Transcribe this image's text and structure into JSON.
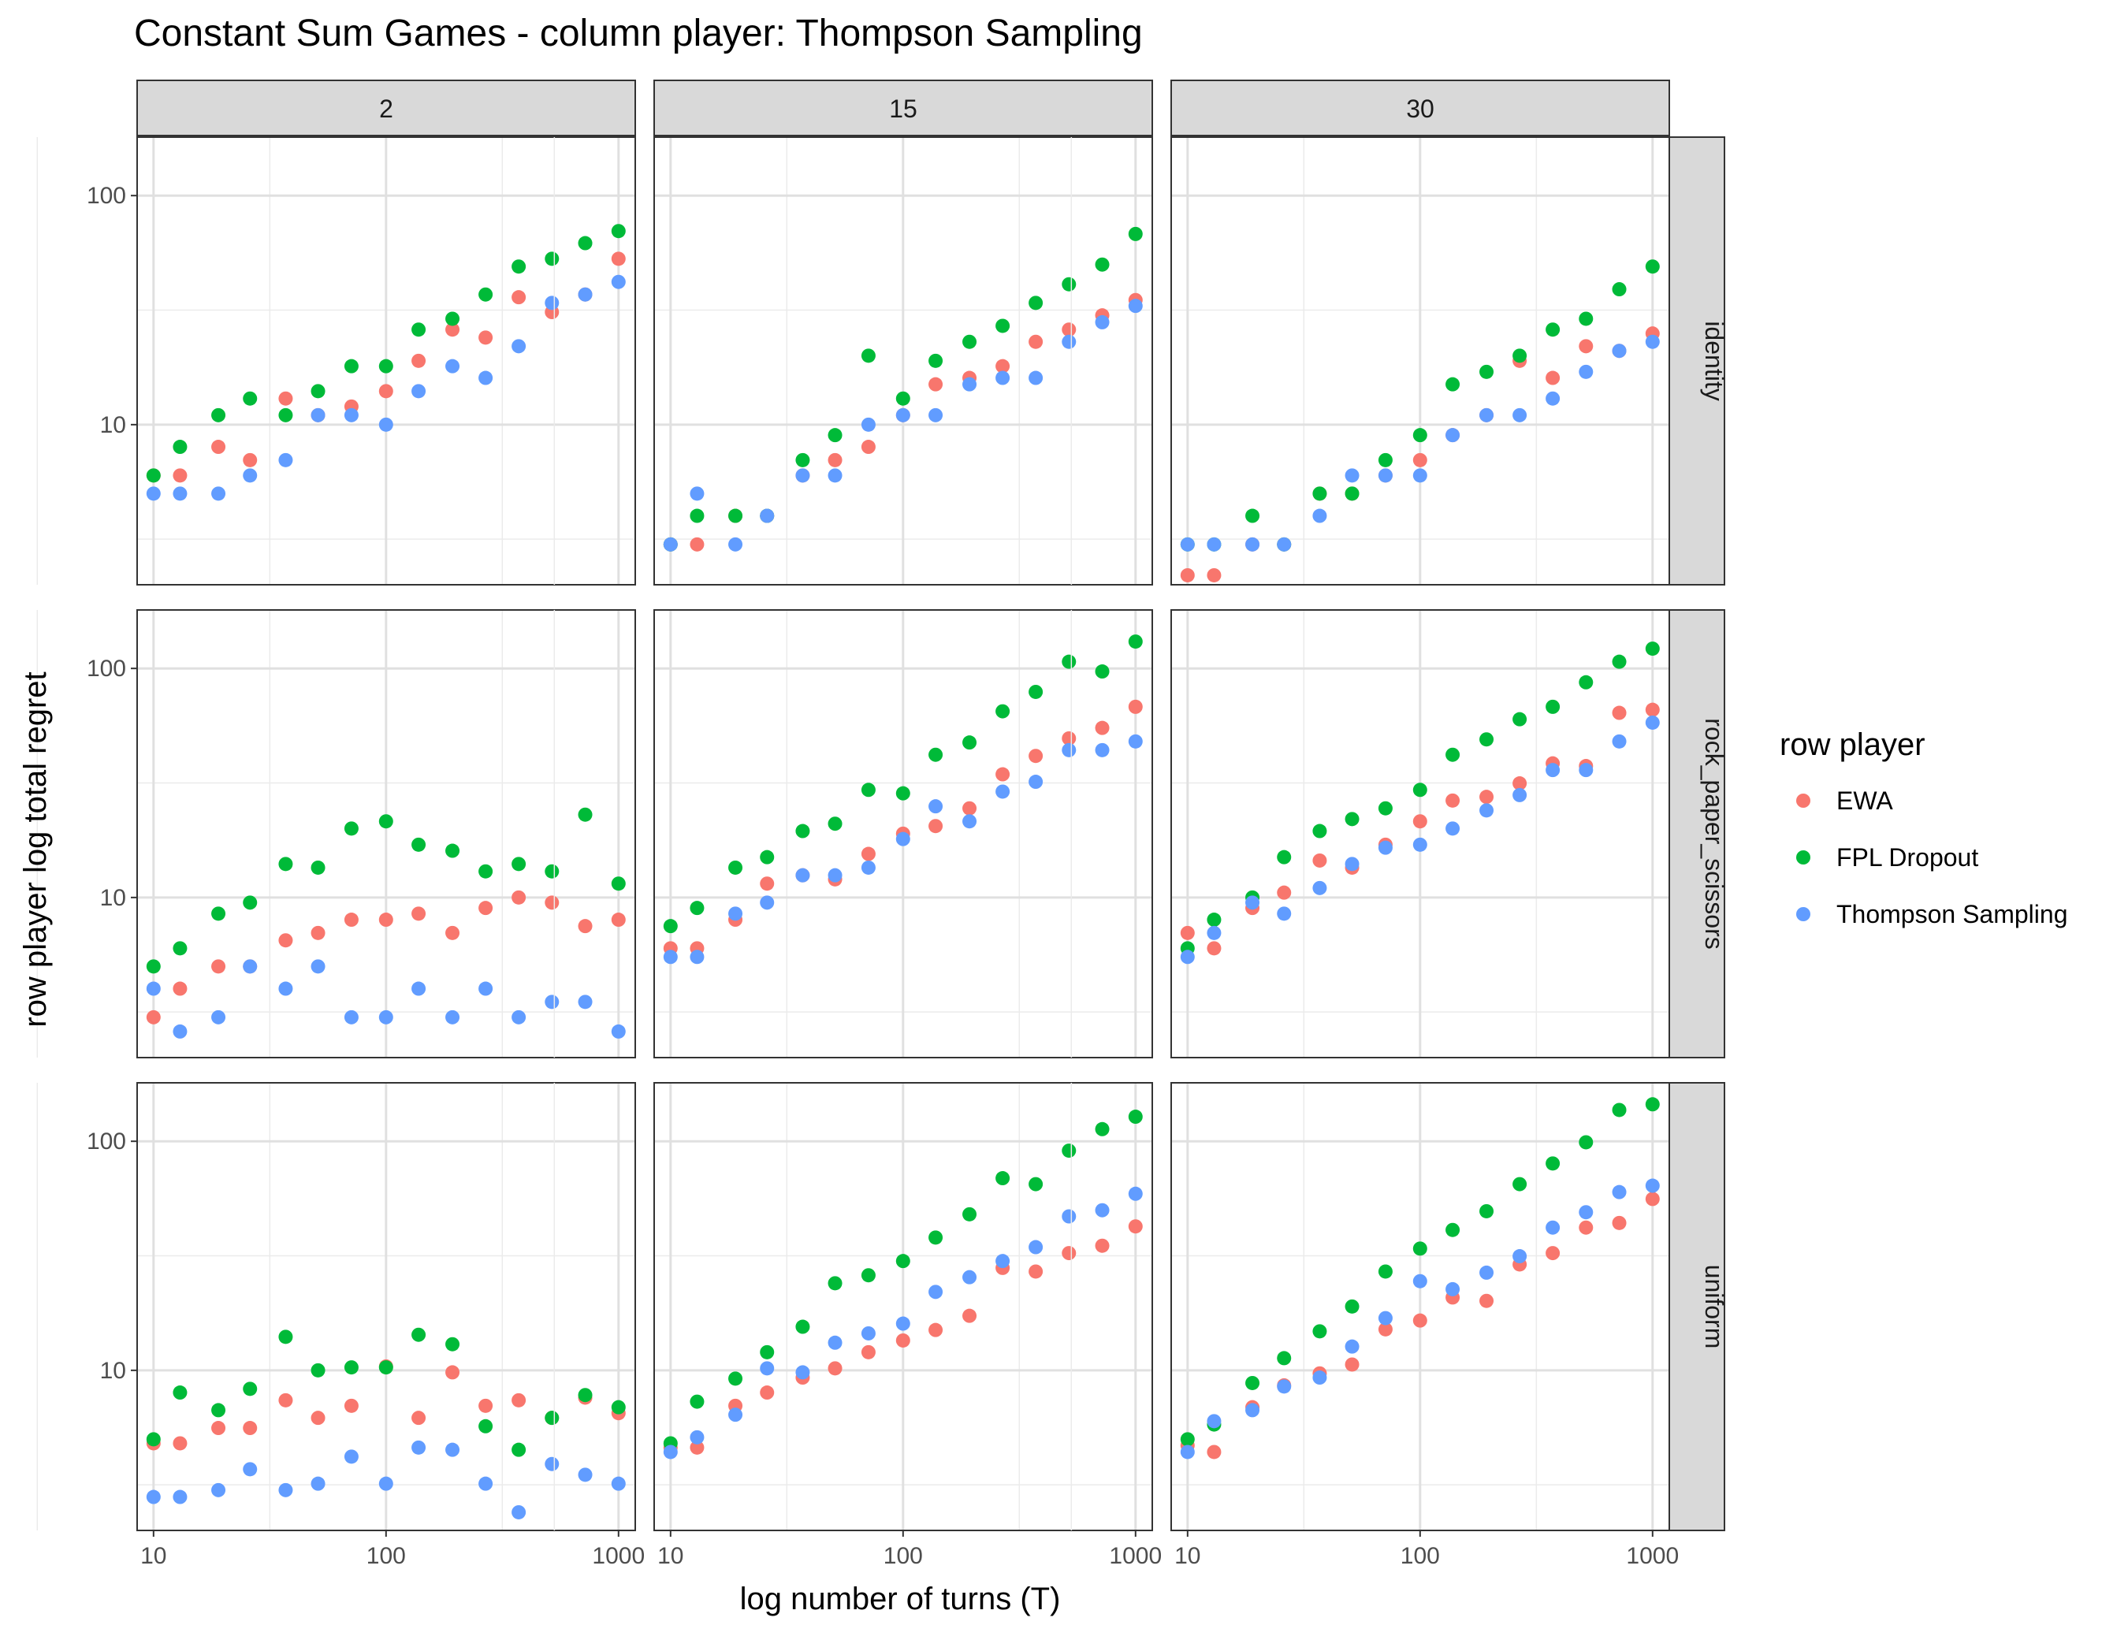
{
  "title": "Constant Sum Games - column player: Thompson Sampling",
  "chart_data": {
    "type": "scatter",
    "facet_layout": "grid",
    "x_scale": "log10",
    "y_scale": "log10",
    "xlabel": "log number of turns (T)",
    "ylabel": "row player log total regret",
    "xlim": [
      8.5,
      1180
    ],
    "ylim": [
      2.0,
      180
    ],
    "x_ticks": [
      10,
      100,
      1000
    ],
    "x_tick_labels": [
      "10",
      "100",
      "1000"
    ],
    "y_ticks": [
      10,
      100
    ],
    "y_tick_labels": [
      "10",
      "100"
    ],
    "grid": true,
    "legend": {
      "title": "row player",
      "position": "right",
      "entries": [
        {
          "name": "EWA",
          "color": "#F8766D"
        },
        {
          "name": "FPL Dropout",
          "color": "#00BA38"
        },
        {
          "name": "Thompson Sampling",
          "color": "#619CFF"
        }
      ]
    },
    "columns": [
      "2",
      "15",
      "30"
    ],
    "rows": [
      "identity",
      "rock_paper_scissors",
      "uniform"
    ],
    "x": [
      10,
      13,
      19,
      26,
      37,
      51,
      71,
      100,
      138,
      193,
      268,
      372,
      517,
      719,
      1000
    ],
    "panels": [
      {
        "col": "2",
        "row": "identity",
        "series": [
          {
            "name": "EWA",
            "values": [
              6,
              6,
              8,
              7,
              13,
              11,
              12,
              14,
              19,
              26,
              24,
              36,
              31,
              37,
              53
            ]
          },
          {
            "name": "FPL Dropout",
            "values": [
              6,
              8,
              11,
              13,
              11,
              14,
              18,
              18,
              26,
              29,
              37,
              49,
              53,
              62,
              70
            ]
          },
          {
            "name": "Thompson Sampling",
            "values": [
              5,
              5,
              5,
              6,
              7,
              11,
              11,
              10,
              14,
              18,
              16,
              22,
              34,
              37,
              42
            ]
          }
        ]
      },
      {
        "col": "15",
        "row": "identity",
        "series": [
          {
            "name": "EWA",
            "values": [
              3,
              3,
              4,
              4,
              6,
              7,
              8,
              11,
              15,
              16,
              18,
              23,
              26,
              30,
              35
            ]
          },
          {
            "name": "FPL Dropout",
            "values": [
              3,
              4,
              4,
              4,
              7,
              9,
              20,
              13,
              19,
              23,
              27,
              34,
              41,
              50,
              68
            ]
          },
          {
            "name": "Thompson Sampling",
            "values": [
              3,
              5,
              3,
              4,
              6,
              6,
              10,
              11,
              11,
              15,
              16,
              16,
              23,
              28,
              33
            ]
          }
        ]
      },
      {
        "col": "30",
        "row": "identity",
        "series": [
          {
            "name": "EWA",
            "values": [
              2.2,
              2.2,
              3,
              3,
              5,
              5,
              6,
              7,
              9,
              11,
              19,
              16,
              22,
              21,
              25
            ]
          },
          {
            "name": "FPL Dropout",
            "values": [
              3,
              3,
              4,
              3,
              5,
              5,
              7,
              9,
              15,
              17,
              20,
              26,
              29,
              39,
              49
            ]
          },
          {
            "name": "Thompson Sampling",
            "values": [
              3,
              3,
              3,
              3,
              4,
              6,
              6,
              6,
              9,
              11,
              11,
              13,
              17,
              21,
              23
            ]
          }
        ]
      },
      {
        "col": "2",
        "row": "rock_paper_scissors",
        "series": [
          {
            "name": "EWA",
            "values": [
              3,
              4,
              5,
              5,
              6.5,
              7,
              8,
              8,
              8.5,
              7,
              9,
              10,
              9.5,
              7.5,
              8
            ]
          },
          {
            "name": "FPL Dropout",
            "values": [
              5,
              6,
              8.5,
              9.5,
              14,
              13.5,
              20,
              21.5,
              17,
              16,
              13,
              14,
              13,
              23,
              11.5
            ]
          },
          {
            "name": "Thompson Sampling",
            "values": [
              4,
              2.6,
              3,
              5,
              4,
              5,
              3,
              3,
              4,
              3,
              4,
              3,
              3.5,
              3.5,
              2.6
            ]
          }
        ]
      },
      {
        "col": "15",
        "row": "rock_paper_scissors",
        "series": [
          {
            "name": "EWA",
            "values": [
              6,
              6,
              8,
              11.5,
              12.5,
              12,
              15.5,
              19,
              20.5,
              24.5,
              34.5,
              41.5,
              49.5,
              55,
              68
            ]
          },
          {
            "name": "FPL Dropout",
            "values": [
              7.5,
              9,
              13.5,
              15,
              19.5,
              21,
              29.5,
              28.5,
              42,
              47.5,
              65,
              79,
              107,
              97,
              131
            ]
          },
          {
            "name": "Thompson Sampling",
            "values": [
              5.5,
              5.5,
              8.5,
              9.5,
              12.5,
              12.5,
              13.5,
              18,
              25,
              21.5,
              29,
              32,
              44,
              44,
              48
            ]
          }
        ]
      },
      {
        "col": "30",
        "row": "rock_paper_scissors",
        "series": [
          {
            "name": "EWA",
            "values": [
              7,
              6,
              9,
              10.5,
              14.5,
              13.5,
              17,
              21.5,
              26.5,
              27.5,
              31.5,
              38.5,
              37.5,
              64,
              66
            ]
          },
          {
            "name": "FPL Dropout",
            "values": [
              6,
              8,
              10,
              15,
              19.5,
              22,
              24.5,
              29.5,
              42,
              49,
              60,
              68,
              87,
              107,
              122
            ]
          },
          {
            "name": "Thompson Sampling",
            "values": [
              5.5,
              7,
              9.5,
              8.5,
              11,
              14,
              16.5,
              17,
              20,
              24,
              28,
              36,
              36,
              48,
              58
            ]
          }
        ]
      },
      {
        "col": "2",
        "row": "uniform",
        "series": [
          {
            "name": "EWA",
            "values": [
              4.8,
              4.8,
              5.6,
              5.6,
              7.4,
              6.2,
              7,
              10.4,
              6.2,
              9.8,
              7,
              7.4,
              6.2,
              7.6,
              6.5
            ]
          },
          {
            "name": "FPL Dropout",
            "values": [
              5,
              8,
              6.7,
              8.3,
              14,
              10,
              10.3,
              10.3,
              14.3,
              13,
              5.7,
              4.5,
              6.2,
              7.8,
              6.9
            ]
          },
          {
            "name": "Thompson Sampling",
            "values": [
              2.8,
              2.8,
              3,
              3.7,
              3,
              3.2,
              4.2,
              3.2,
              4.6,
              4.5,
              3.2,
              2.4,
              3.9,
              3.5,
              3.2
            ]
          }
        ]
      },
      {
        "col": "15",
        "row": "uniform",
        "series": [
          {
            "name": "EWA",
            "values": [
              4.6,
              4.6,
              7,
              8,
              9.3,
              10.2,
              12,
              13.5,
              15,
              17.3,
              28,
              27,
              32.5,
              35,
              42.5
            ]
          },
          {
            "name": "FPL Dropout",
            "values": [
              4.8,
              7.3,
              9.2,
              12,
              15.5,
              24,
              26,
              30,
              38,
              48,
              69,
              65,
              91,
              113,
              128
            ]
          },
          {
            "name": "Thompson Sampling",
            "values": [
              4.4,
              5.1,
              6.4,
              10.2,
              9.8,
              13.2,
              14.5,
              16,
              22,
              25.5,
              30,
              34.5,
              47,
              50,
              59
            ]
          }
        ]
      },
      {
        "col": "30",
        "row": "uniform",
        "series": [
          {
            "name": "EWA",
            "values": [
              4.7,
              4.4,
              6.9,
              8.6,
              9.7,
              10.6,
              15.1,
              16.5,
              20.8,
              20.1,
              29,
              32.5,
              42,
              44,
              56
            ]
          },
          {
            "name": "FPL Dropout",
            "values": [
              5,
              5.8,
              8.8,
              11.3,
              14.8,
              19,
              27,
              34,
              41,
              49.5,
              65,
              80,
              99,
              137,
              145
            ]
          },
          {
            "name": "Thompson Sampling",
            "values": [
              4.4,
              6,
              6.7,
              8.5,
              9.3,
              12.7,
              16.9,
              24.5,
              22.6,
              26.7,
              31.5,
              42,
              49,
              60,
              64
            ]
          }
        ]
      }
    ]
  }
}
